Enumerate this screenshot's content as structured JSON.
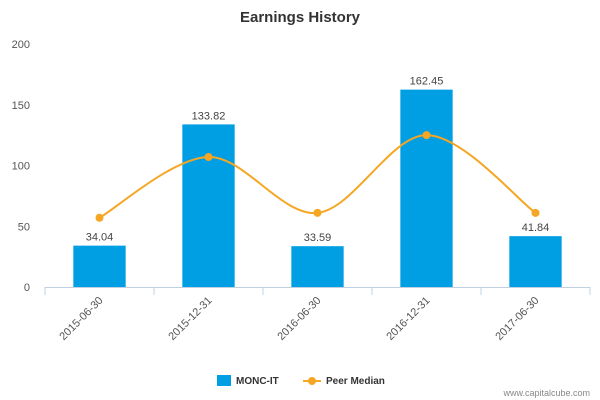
{
  "chart_data": {
    "type": "bar",
    "title": "Earnings History",
    "categories": [
      "2015-06-30",
      "2015-12-31",
      "2016-06-30",
      "2016-12-31",
      "2017-06-30"
    ],
    "series": [
      {
        "name": "MONC-IT",
        "type": "bar",
        "values": [
          34.04,
          133.82,
          33.59,
          162.45,
          41.84
        ],
        "labels": [
          "34.04",
          "133.82",
          "33.59",
          "162.45",
          "41.84"
        ]
      },
      {
        "name": "Peer Median",
        "type": "line",
        "values": [
          57,
          107,
          61,
          125,
          61
        ]
      }
    ],
    "ylim": [
      0,
      200
    ],
    "yticks": [
      0,
      50,
      100,
      150,
      200
    ],
    "grid": false,
    "legend_position": "bottom-center",
    "colors": {
      "bar": "#009ee3",
      "line": "#f5a623",
      "axis": "#c0d0e0"
    }
  },
  "credit": "www.capitalcube.com"
}
